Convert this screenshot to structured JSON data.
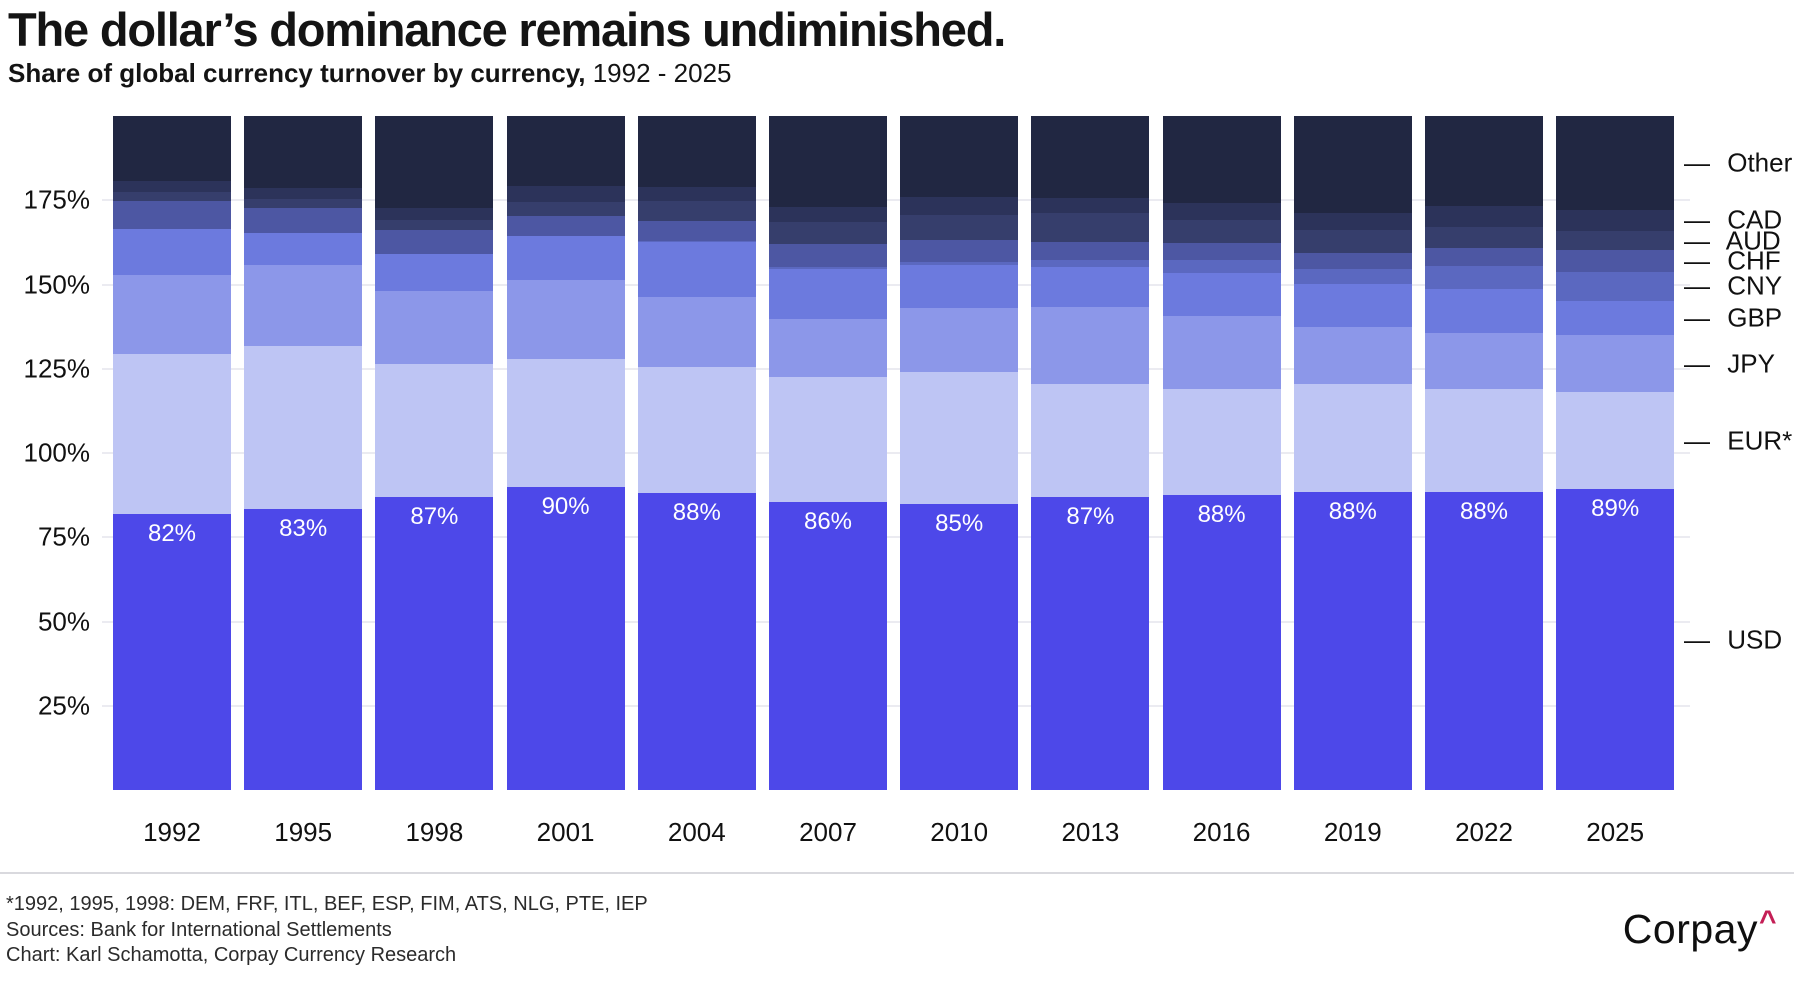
{
  "header": {
    "title": "The dollar’s dominance remains undiminished.",
    "subtitle_bold": "Share of global currency turnover by currency,",
    "subtitle_rest": " 1992 - 2025"
  },
  "chart_data": {
    "type": "bar",
    "stacked": true,
    "note": "stacked 100%-of-200% currency turnover shares; each column sums to 200%",
    "categories": [
      "1992",
      "1995",
      "1998",
      "2001",
      "2004",
      "2007",
      "2010",
      "2013",
      "2016",
      "2019",
      "2022",
      "2025"
    ],
    "ylim": [
      0,
      200
    ],
    "grid": true,
    "legend_position": "right",
    "yticks": [
      {
        "v": 25,
        "label": "25%"
      },
      {
        "v": 50,
        "label": "50%"
      },
      {
        "v": 75,
        "label": "75%"
      },
      {
        "v": 100,
        "label": "100%"
      },
      {
        "v": 125,
        "label": "125%"
      },
      {
        "v": 150,
        "label": "150%"
      },
      {
        "v": 175,
        "label": "175%"
      }
    ],
    "series": [
      {
        "name": "USD",
        "color": "#4d48e9",
        "values": [
          82.0,
          83.3,
          86.8,
          89.9,
          88.0,
          85.6,
          84.9,
          87.0,
          87.6,
          88.3,
          88.5,
          89.2
        ]
      },
      {
        "name": "EUR*",
        "color": "#bec5f4",
        "values": [
          47.5,
          48.5,
          39.5,
          37.9,
          37.4,
          37.0,
          39.1,
          33.4,
          31.4,
          32.3,
          30.5,
          28.9
        ]
      },
      {
        "name": "JPY",
        "color": "#8c97e9",
        "values": [
          23.4,
          24.1,
          21.7,
          23.5,
          20.8,
          17.2,
          19.0,
          23.0,
          21.6,
          16.8,
          16.7,
          16.9
        ]
      },
      {
        "name": "GBP",
        "color": "#6c7ade",
        "values": [
          13.6,
          9.4,
          11.0,
          13.0,
          16.5,
          14.9,
          12.9,
          11.8,
          12.8,
          12.8,
          12.9,
          10.2
        ]
      },
      {
        "name": "CNY",
        "color": "#5b68c0",
        "values": [
          0,
          0,
          0,
          0,
          0.1,
          0.5,
          0.9,
          2.2,
          4.0,
          4.3,
          7.0,
          8.5
        ]
      },
      {
        "name": "CHF",
        "color": "#4d57a3",
        "values": [
          8.4,
          7.3,
          7.1,
          6.0,
          6.0,
          6.8,
          6.3,
          5.2,
          4.8,
          4.9,
          5.2,
          6.4
        ]
      },
      {
        "name": "AUD",
        "color": "#363e6c",
        "values": [
          2.5,
          2.7,
          3.0,
          4.3,
          6.0,
          6.6,
          7.6,
          8.6,
          6.9,
          6.8,
          6.4,
          5.9
        ]
      },
      {
        "name": "CAD",
        "color": "#2c335a",
        "values": [
          3.3,
          3.4,
          3.5,
          4.5,
          4.2,
          4.3,
          5.3,
          4.6,
          5.1,
          5.0,
          6.2,
          6.1
        ]
      },
      {
        "name": "Other",
        "color": "#212742",
        "values": [
          19.3,
          21.3,
          27.4,
          20.9,
          21.0,
          27.1,
          24.0,
          24.2,
          25.8,
          28.8,
          26.6,
          27.9
        ]
      }
    ],
    "bar_value_labels": [
      "82%",
      "83%",
      "87%",
      "90%",
      "88%",
      "86%",
      "85%",
      "87%",
      "88%",
      "88%",
      "88%",
      "89%"
    ],
    "legend_dash": "—"
  },
  "footer": {
    "line1": "*1992, 1995, 1998: DEM, FRF, ITL, BEF, ESP, FIM, ATS, NLG, PTE, IEP",
    "line2": "Sources: Bank for International Settlements",
    "line3": "Chart: Karl Schamotta, Corpay Currency Research"
  },
  "logo": {
    "text": "Corpay",
    "caret": "^",
    "caret_color": "#c41f56"
  }
}
